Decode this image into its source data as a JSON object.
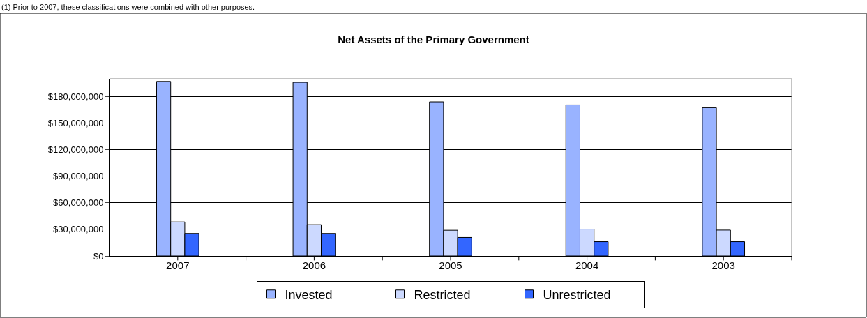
{
  "chart_data": {
    "type": "bar",
    "title": "Net Assets of the Primary Government",
    "annotations": [
      "(1) Prior to 2007, these classifications were combined with other purposes."
    ],
    "categories": [
      "2007",
      "2006",
      "2005",
      "2004",
      "2003"
    ],
    "series": [
      {
        "name": "Invested",
        "color": "#99b3ff",
        "values": [
          197000000,
          196000000,
          174000000,
          170500000,
          167400000
        ]
      },
      {
        "name": "Restricted",
        "color": "#ccd9ff",
        "values": [
          38400000,
          35300000,
          29000000,
          30300000,
          29200000
        ]
      },
      {
        "name": "Unrestricted",
        "color": "#3366ff",
        "values": [
          25400000,
          25400000,
          20900000,
          16100000,
          16100000
        ]
      }
    ],
    "ylim": [
      0,
      200000000
    ],
    "yticks": [
      {
        "value": 0,
        "label": "$0"
      },
      {
        "value": 30000000,
        "label": "$30,000,000"
      },
      {
        "value": 60000000,
        "label": "$60,000,000"
      },
      {
        "value": 90000000,
        "label": "$90,000,000"
      },
      {
        "value": 120000000,
        "label": "$120,000,000"
      },
      {
        "value": 150000000,
        "label": "$150,000,000"
      },
      {
        "value": 180000000,
        "label": "$180,000,000"
      }
    ],
    "grid": "y",
    "legend": "bottom"
  }
}
